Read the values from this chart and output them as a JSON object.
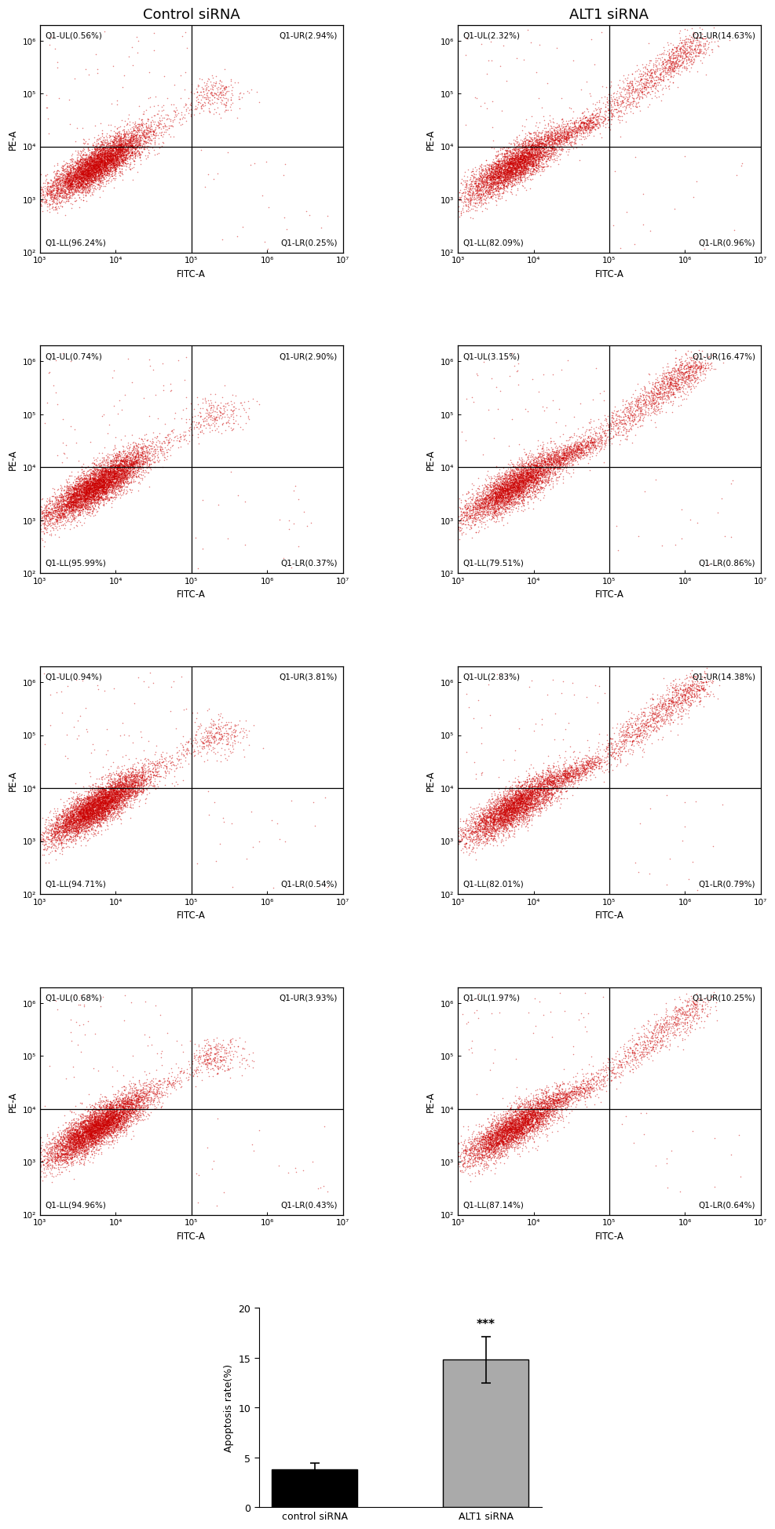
{
  "col1_title": "Control siRNA",
  "col2_title": "ALT1 siRNA",
  "flow_plots": [
    {
      "col": 0,
      "quadrants": {
        "UL": "0.56%",
        "UR": "2.94%",
        "LL": "96.24%",
        "LR": "0.25%"
      },
      "main_n": 6000,
      "upper_n": 200,
      "streak_n": 150
    },
    {
      "col": 1,
      "quadrants": {
        "UL": "2.32%",
        "UR": "14.63%",
        "LL": "82.09%",
        "LR": "0.96%"
      },
      "main_n": 4500,
      "upper_n": 1200,
      "streak_n": 600
    },
    {
      "col": 0,
      "quadrants": {
        "UL": "0.74%",
        "UR": "2.90%",
        "LL": "95.99%",
        "LR": "0.37%"
      },
      "main_n": 6000,
      "upper_n": 200,
      "streak_n": 150
    },
    {
      "col": 1,
      "quadrants": {
        "UL": "3.15%",
        "UR": "16.47%",
        "LL": "79.51%",
        "LR": "0.86%"
      },
      "main_n": 4500,
      "upper_n": 1400,
      "streak_n": 700
    },
    {
      "col": 0,
      "quadrants": {
        "UL": "0.94%",
        "UR": "3.81%",
        "LL": "94.71%",
        "LR": "0.54%"
      },
      "main_n": 6000,
      "upper_n": 260,
      "streak_n": 180
    },
    {
      "col": 1,
      "quadrants": {
        "UL": "2.83%",
        "UR": "14.38%",
        "LL": "82.01%",
        "LR": "0.79%"
      },
      "main_n": 4500,
      "upper_n": 1200,
      "streak_n": 600
    },
    {
      "col": 0,
      "quadrants": {
        "UL": "0.68%",
        "UR": "3.93%",
        "LL": "94.96%",
        "LR": "0.43%"
      },
      "main_n": 6000,
      "upper_n": 270,
      "streak_n": 180
    },
    {
      "col": 1,
      "quadrants": {
        "UL": "1.97%",
        "UR": "10.25%",
        "LL": "87.14%",
        "LR": "0.64%"
      },
      "main_n": 4500,
      "upper_n": 850,
      "streak_n": 400
    }
  ],
  "bar_data": {
    "categories": [
      "control siRNA",
      "ALT1 siRNA"
    ],
    "values": [
      3.8,
      14.8
    ],
    "errors": [
      0.6,
      2.3
    ],
    "colors": [
      "#000000",
      "#aaaaaa"
    ],
    "ylabel": "Apoptosis rate(%)",
    "ylim": [
      0,
      20
    ],
    "yticks": [
      0,
      5,
      10,
      15,
      20
    ],
    "significance": "***"
  },
  "dot_color": "#cc0000",
  "dot_alpha": 0.5,
  "dot_size": 1.2,
  "quadrant_line_x": 5.0,
  "quadrant_line_y": 4.0,
  "xaxis_label": "FITC-A",
  "yaxis_label": "PE-A",
  "xlim": [
    3.0,
    7.0
  ],
  "ylim_flow": [
    2.0,
    6.3
  ],
  "xticks": [
    3,
    4,
    5,
    6,
    7
  ],
  "yticks_flow": [
    2,
    3,
    4,
    5,
    6
  ],
  "tick_labels_x": [
    "10³",
    "10⁴",
    "10⁵",
    "10⁶",
    "10⁷"
  ],
  "tick_labels_y": [
    "10²",
    "10³",
    "10⁴",
    "10⁵",
    "10⁶"
  ]
}
